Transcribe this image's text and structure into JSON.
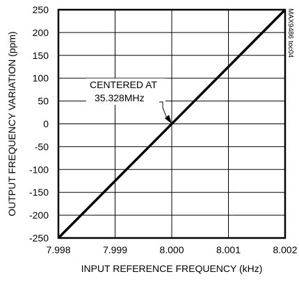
{
  "chart_data": {
    "type": "line",
    "xlabel": "INPUT REFERENCE FREQUENCY (kHz)",
    "ylabel": "OUTPUT FREQUENCY VARIATION (ppm)",
    "xlim": [
      7.998,
      8.002
    ],
    "ylim": [
      -250,
      250
    ],
    "xticks": [
      7.998,
      7.999,
      8.0,
      8.001,
      8.002
    ],
    "xtick_labels": [
      "7.998",
      "7.999",
      "8.000",
      "8.001",
      "8.002"
    ],
    "yticks": [
      250,
      200,
      150,
      100,
      50,
      0,
      -50,
      -100,
      -150,
      -200,
      -250
    ],
    "ytick_labels": [
      "250",
      "200",
      "150",
      "100",
      "50",
      "0",
      "-50",
      "-100",
      "-150",
      "-200",
      "-250"
    ],
    "grid": true,
    "series": [
      {
        "x": [
          7.998,
          8.002
        ],
        "y": [
          -250,
          250
        ]
      }
    ],
    "annotation": {
      "lines": [
        "CENTERED AT",
        "35.328MHz"
      ],
      "arrow_target": [
        8.0,
        0
      ]
    },
    "side_code": "MAX9486 toc04",
    "colors": {
      "line": "#000000",
      "grid": "#000000",
      "frame": "#000000"
    }
  }
}
